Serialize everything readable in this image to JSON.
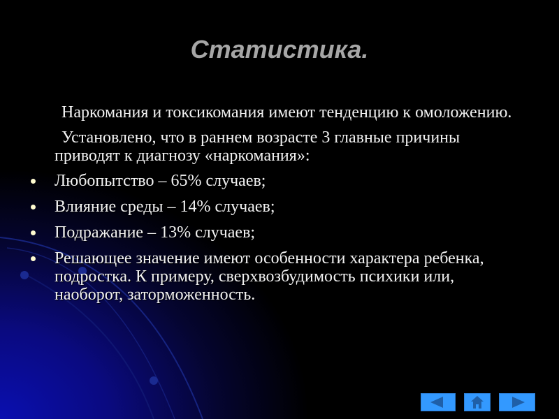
{
  "slide": {
    "title": "Статистика.",
    "paragraphs": [
      "Наркомания и токсикомания имеют тенденцию к омоложению.",
      "Установлено, что в раннем возрасте 3 главные причины приводят к диагнозу «наркомания»:"
    ],
    "bullets": [
      "Любопытство – 65% случаев;",
      "Влияние среды – 14% случаев;",
      "Подражание – 13% случаев;",
      "Решающее значение имеют особенности характера ребенка, подростка. К примеру, сверхвозбудимость  психики или, наоборот, заторможенность."
    ]
  },
  "nav": {
    "buttons": [
      {
        "icon": "triangle-left-icon"
      },
      {
        "icon": "home-icon"
      },
      {
        "icon": "triangle-right-icon"
      }
    ],
    "button_color": "#3399ff",
    "icon_color": "#1f5fa8"
  }
}
